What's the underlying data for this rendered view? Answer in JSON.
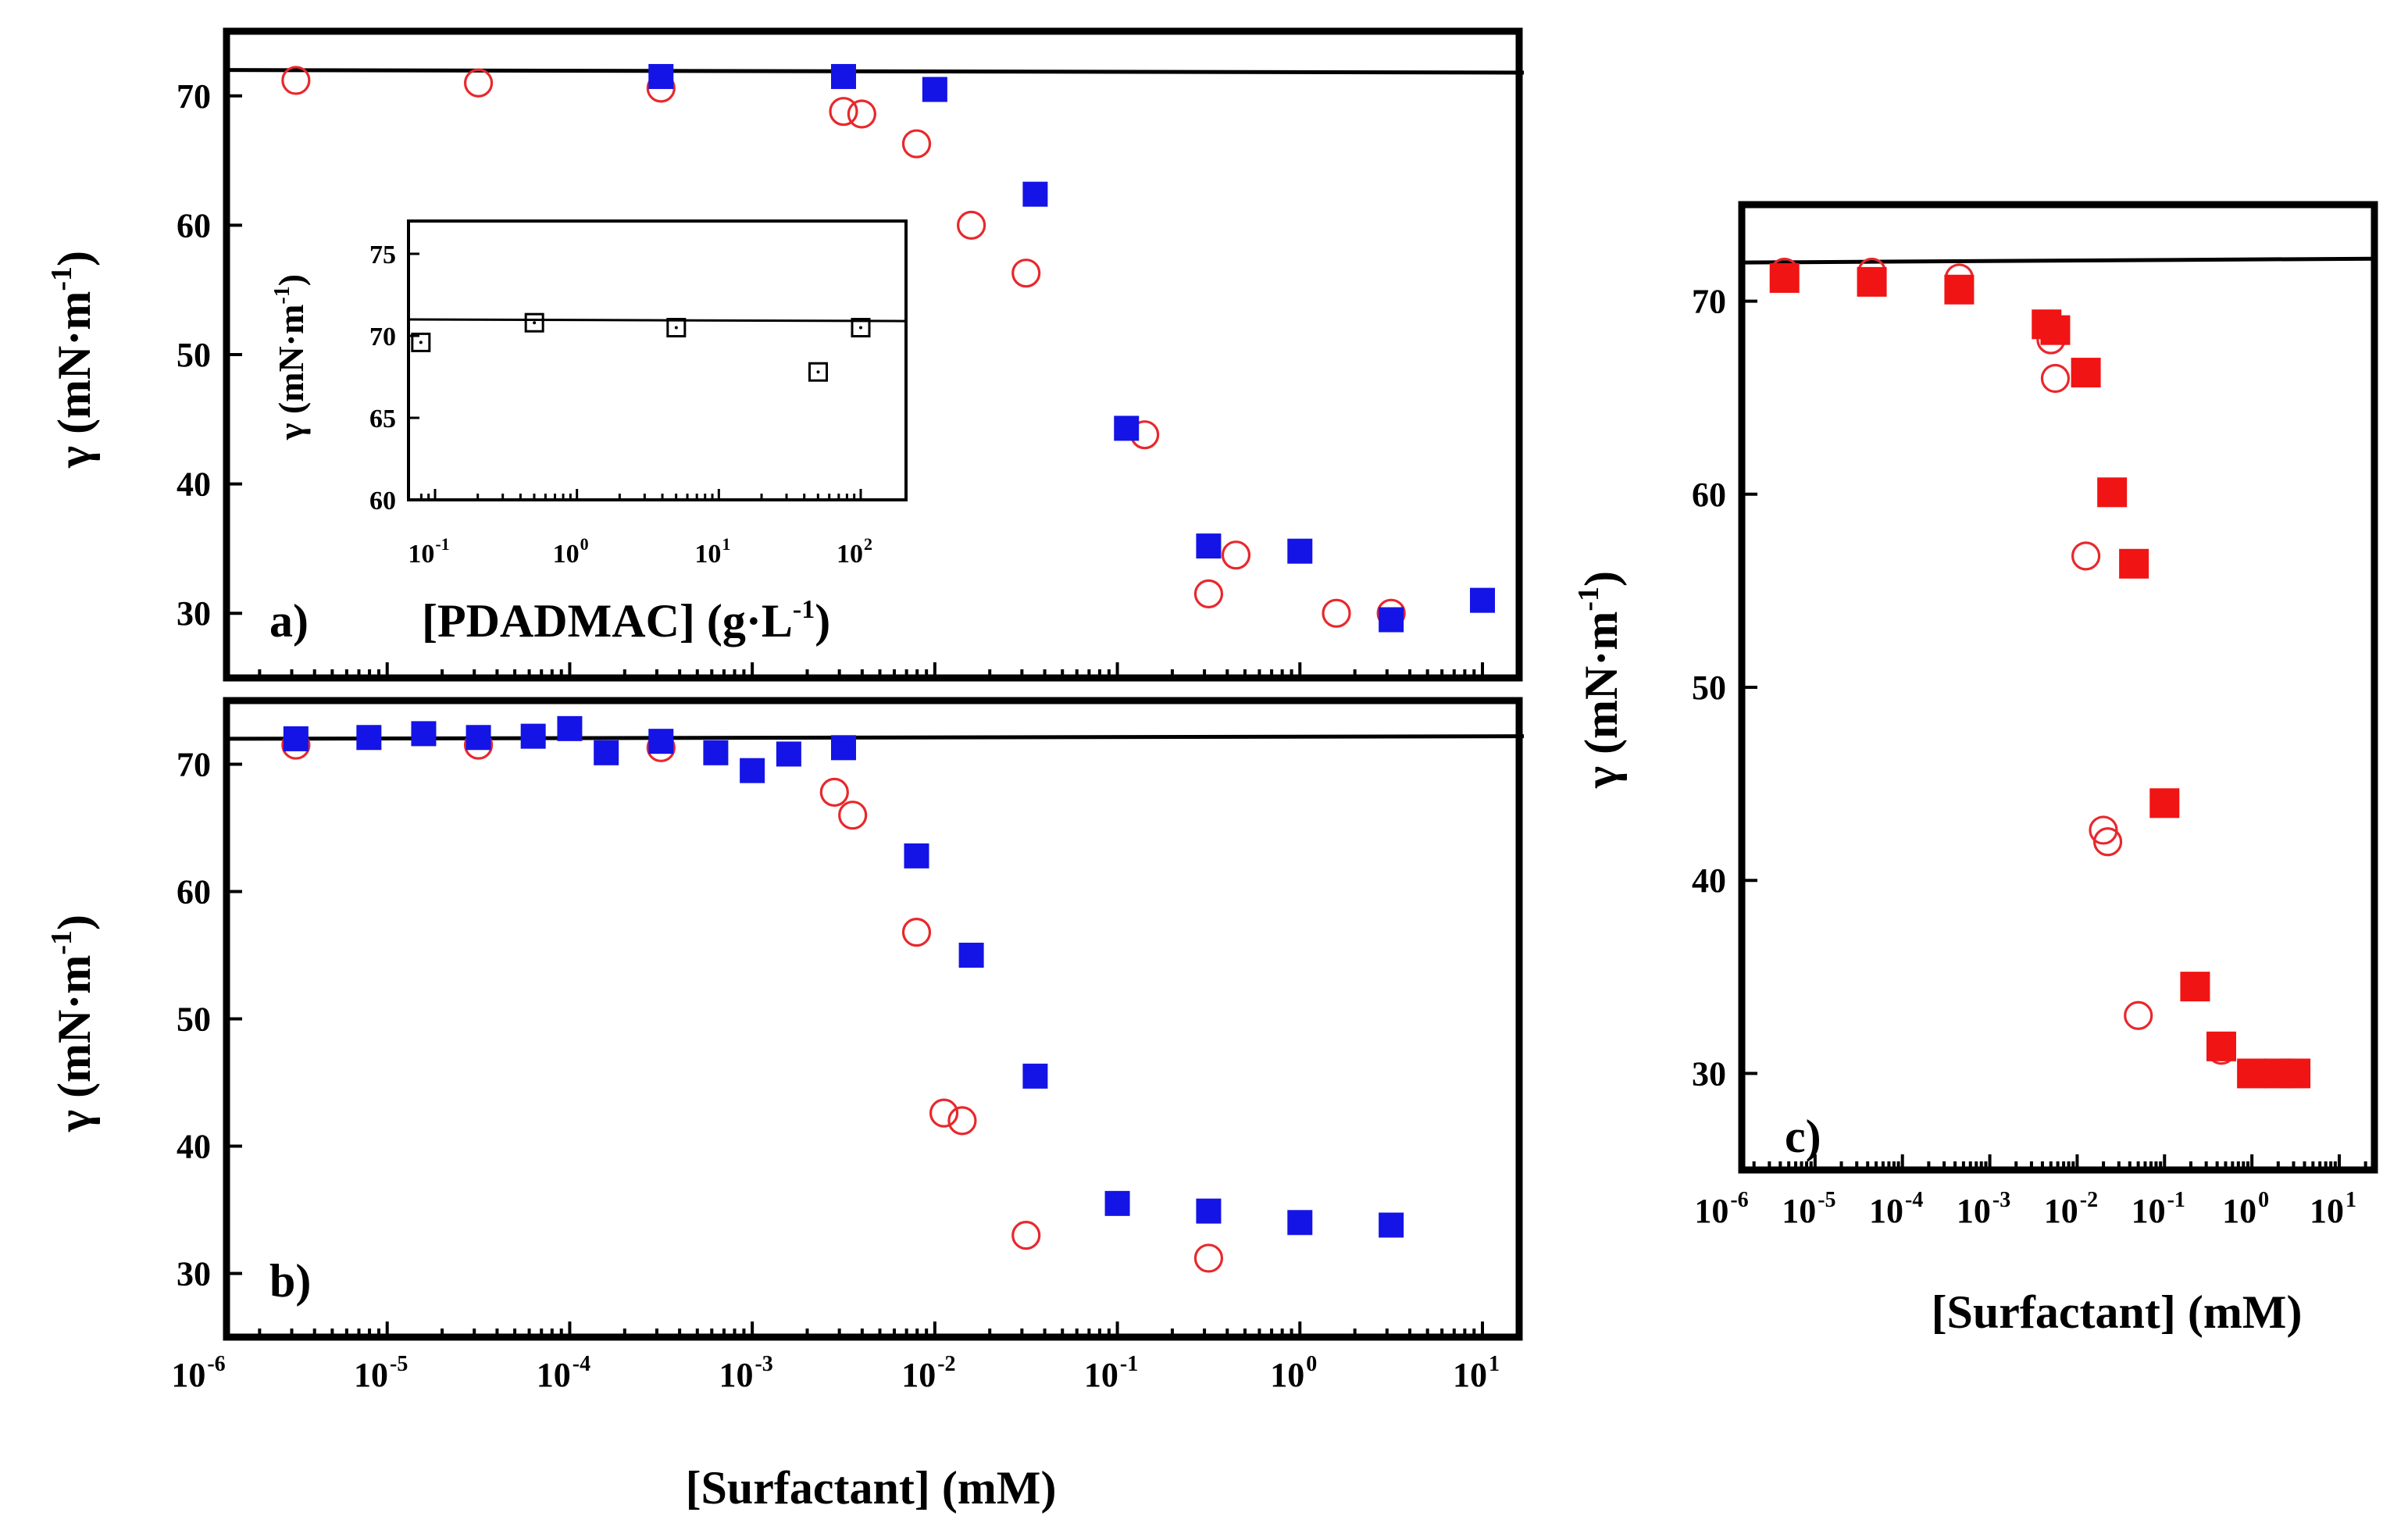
{
  "figure": {
    "x_axis_label": "[Surfactant] (mM)",
    "y_axis_label": "γ (mN·m",
    "y_axis_exponent": "-1",
    "x_tick_labels": [
      {
        "base": "10",
        "exp": "-6"
      },
      {
        "base": "10",
        "exp": "-5"
      },
      {
        "base": "10",
        "exp": "-4"
      },
      {
        "base": "10",
        "exp": "-3"
      },
      {
        "base": "10",
        "exp": "-2"
      },
      {
        "base": "10",
        "exp": "-1"
      },
      {
        "base": "10",
        "exp": "0"
      },
      {
        "base": "10",
        "exp": "1"
      }
    ]
  },
  "chart_data": [
    {
      "panel": "a)",
      "type": "scatter",
      "xscale": "log",
      "xlim_log10": [
        -6,
        1.3
      ],
      "ylim": [
        25,
        75
      ],
      "y_ticks": [
        "30",
        "40",
        "50",
        "60",
        "70"
      ],
      "reference_line": {
        "x_log10": [
          -6,
          1.3
        ],
        "y": [
          72.0,
          71.8
        ]
      },
      "series": [
        {
          "name": "open circles",
          "marker": "circle-open",
          "color": "#e8282c",
          "points": [
            [
              -5.5,
              71.2
            ],
            [
              -4.5,
              71.0
            ],
            [
              -3.5,
              70.6
            ],
            [
              -2.5,
              68.8
            ],
            [
              -2.4,
              68.6
            ],
            [
              -2.1,
              66.3
            ],
            [
              -1.8,
              60.0
            ],
            [
              -1.5,
              56.3
            ],
            [
              -0.85,
              43.8
            ],
            [
              -0.35,
              34.5
            ],
            [
              -0.5,
              31.5
            ],
            [
              0.2,
              30.0
            ],
            [
              0.5,
              30.0
            ]
          ]
        },
        {
          "name": "filled squares",
          "marker": "square-filled",
          "color": "#1414e6",
          "points": [
            [
              -3.5,
              71.5
            ],
            [
              -2.5,
              71.5
            ],
            [
              -2.0,
              70.5
            ],
            [
              -1.45,
              62.4
            ],
            [
              -0.95,
              44.3
            ],
            [
              -0.5,
              35.2
            ],
            [
              0.0,
              34.8
            ],
            [
              0.5,
              29.5
            ],
            [
              1.0,
              31.0
            ]
          ]
        }
      ]
    },
    {
      "panel": "b)",
      "type": "scatter",
      "xscale": "log",
      "xlim_log10": [
        -6,
        1.3
      ],
      "ylim": [
        25,
        75
      ],
      "y_ticks": [
        "30",
        "40",
        "50",
        "60",
        "70"
      ],
      "reference_line": {
        "x_log10": [
          -6,
          1.3
        ],
        "y": [
          72.0,
          72.2
        ]
      },
      "series": [
        {
          "name": "open circles",
          "marker": "circle-open",
          "color": "#e8282c",
          "points": [
            [
              -5.5,
              71.5
            ],
            [
              -4.5,
              71.5
            ],
            [
              -3.5,
              71.3
            ],
            [
              -2.55,
              67.8
            ],
            [
              -2.45,
              66.0
            ],
            [
              -2.1,
              56.8
            ],
            [
              -1.95,
              42.6
            ],
            [
              -1.85,
              42.0
            ],
            [
              -1.5,
              33.0
            ],
            [
              -0.5,
              31.2
            ]
          ]
        },
        {
          "name": "filled squares",
          "marker": "square-filled",
          "color": "#1414e6",
          "points": [
            [
              -5.5,
              72.0
            ],
            [
              -5.1,
              72.1
            ],
            [
              -4.8,
              72.4
            ],
            [
              -4.5,
              72.1
            ],
            [
              -4.2,
              72.2
            ],
            [
              -4.0,
              72.8
            ],
            [
              -3.8,
              70.9
            ],
            [
              -3.5,
              71.8
            ],
            [
              -3.2,
              70.9
            ],
            [
              -3.0,
              69.5
            ],
            [
              -2.8,
              70.8
            ],
            [
              -2.5,
              71.3
            ],
            [
              -2.1,
              62.8
            ],
            [
              -1.8,
              55.0
            ],
            [
              -1.45,
              45.5
            ],
            [
              -1.0,
              35.5
            ],
            [
              -0.5,
              34.9
            ],
            [
              0.0,
              34.0
            ],
            [
              0.5,
              33.8
            ]
          ]
        }
      ]
    },
    {
      "panel": "c)",
      "type": "scatter",
      "xscale": "log",
      "xlim_log10": [
        -6,
        1.3
      ],
      "ylim": [
        25,
        75
      ],
      "y_ticks": [
        "30",
        "40",
        "50",
        "60",
        "70"
      ],
      "reference_line": {
        "x_log10": [
          -6,
          1.3
        ],
        "y": [
          72.0,
          72.2
        ]
      },
      "series": [
        {
          "name": "open circles",
          "marker": "circle-open",
          "color": "#e8282c",
          "points": [
            [
              -5.35,
              71.5
            ],
            [
              -4.35,
              71.5
            ],
            [
              -3.35,
              71.2
            ],
            [
              -2.3,
              68.0
            ],
            [
              -2.25,
              66.0
            ],
            [
              -1.9,
              56.8
            ],
            [
              -1.7,
              42.6
            ],
            [
              -1.65,
              42.0
            ],
            [
              -1.3,
              33.0
            ],
            [
              -0.35,
              31.2
            ]
          ]
        },
        {
          "name": "filled squares",
          "marker": "square-filled",
          "color": "#f01414",
          "points": [
            [
              -5.35,
              71.2
            ],
            [
              -4.35,
              71.0
            ],
            [
              -3.35,
              70.6
            ],
            [
              -2.35,
              68.8
            ],
            [
              -2.25,
              68.5
            ],
            [
              -1.9,
              66.3
            ],
            [
              -1.6,
              60.1
            ],
            [
              -1.35,
              56.4
            ],
            [
              -1.0,
              44.0
            ],
            [
              -0.65,
              34.5
            ],
            [
              -0.35,
              31.4
            ],
            [
              0.0,
              30.0
            ],
            [
              0.3,
              30.0
            ],
            [
              0.5,
              30.0
            ]
          ]
        }
      ]
    },
    {
      "panel": "inset",
      "type": "scatter",
      "xscale": "log",
      "xlim_log10": [
        -1.2,
        2.4
      ],
      "ylim": [
        60,
        77
      ],
      "x_label": "[PDADMAC] (g·L",
      "x_label_exponent": "-1",
      "y_label": "γ (mN·m",
      "y_label_exponent": "-1",
      "y_ticks": [
        "60",
        "65",
        "70",
        "75"
      ],
      "x_tick_labels": [
        {
          "base": "10",
          "exp": "-1"
        },
        {
          "base": "10",
          "exp": "0"
        },
        {
          "base": "10",
          "exp": "1"
        },
        {
          "base": "10",
          "exp": "2"
        }
      ],
      "reference_line": {
        "x_log10": [
          -1.2,
          2.4
        ],
        "y": [
          71.0,
          70.9
        ]
      },
      "series": [
        {
          "name": "open squares",
          "marker": "square-open",
          "color": "#000000",
          "points": [
            [
              -1.1,
              69.6
            ],
            [
              -0.3,
              70.8
            ],
            [
              0.7,
              70.5
            ],
            [
              1.7,
              67.8
            ],
            [
              2.0,
              70.5
            ]
          ]
        }
      ]
    }
  ]
}
